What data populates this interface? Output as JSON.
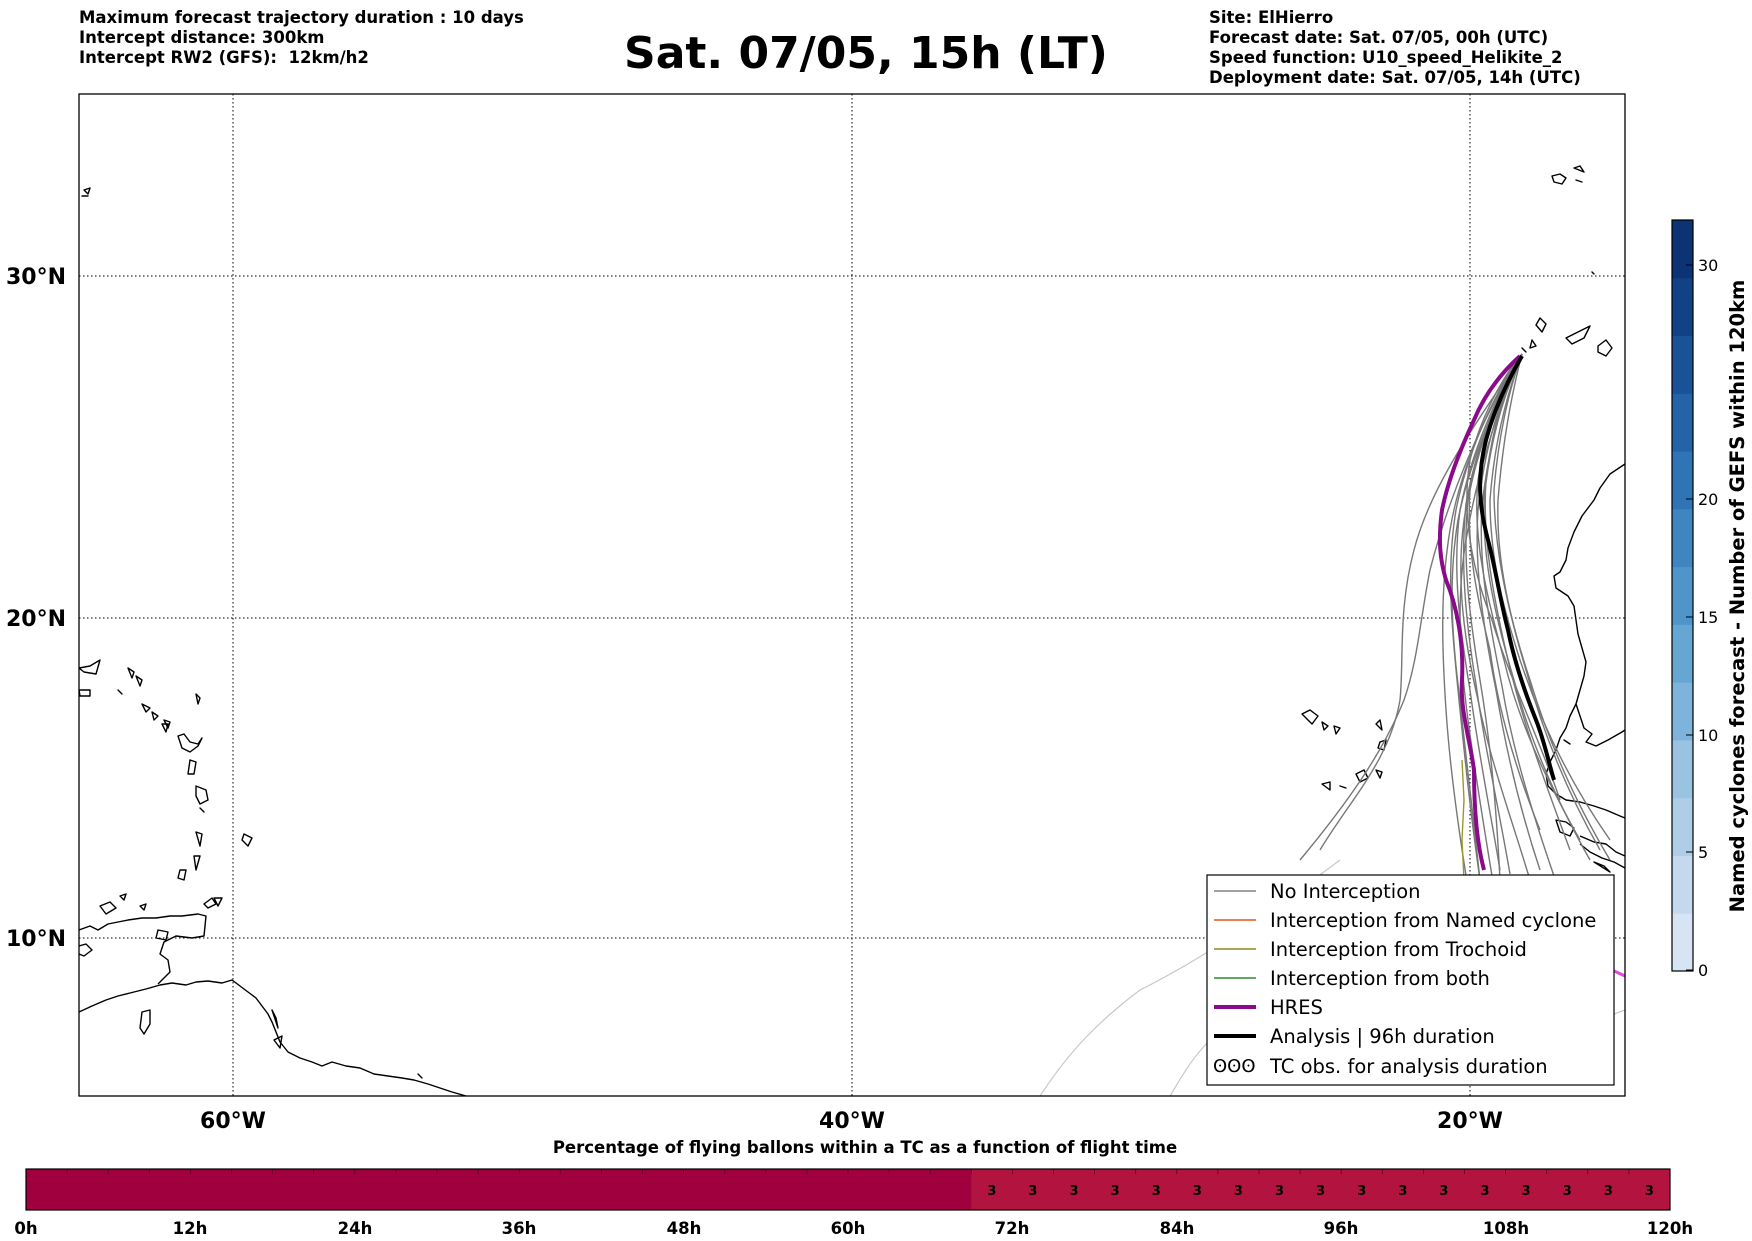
{
  "header": {
    "left_lines": [
      "Maximum forecast trajectory duration : 10 days",
      "Intercept distance: 300km",
      "Intercept RW2 (GFS):  12km/h2"
    ],
    "title": "Sat. 07/05, 15h (LT)",
    "right_lines": [
      "Site: ElHierro",
      "Forecast date: Sat. 07/05, 00h (UTC)",
      "Speed function: U10_speed_Helikite_2",
      "Deployment date: Sat. 07/05, 14h (UTC)"
    ]
  },
  "map": {
    "lat_labels": [
      "30°N",
      "20°N",
      "10°N"
    ],
    "lon_labels": [
      "60°W",
      "40°W",
      "20°W"
    ],
    "grid": "dotted"
  },
  "legend": {
    "items": [
      {
        "label": "No Interception",
        "color": "#808080",
        "style": "thin"
      },
      {
        "label": "Interception from Named cyclone",
        "color": "#e8531e",
        "style": "thin"
      },
      {
        "label": "Interception from Trochoid",
        "color": "#8b8b1a",
        "style": "thin"
      },
      {
        "label": "Interception from both",
        "color": "#2e8b2e",
        "style": "thin"
      },
      {
        "label": "HRES",
        "color": "#8b0a8b",
        "style": "thick"
      },
      {
        "label": "Analysis | 96h duration",
        "color": "#000000",
        "style": "thick"
      },
      {
        "label": "TC obs. for analysis duration",
        "color": "#000000",
        "style": "symbol",
        "symbol": "ʘʘʘ"
      }
    ]
  },
  "colorbar": {
    "label": "Named cyclones forecast - Number of GEFS within 120km",
    "ticks": [
      "0",
      "5",
      "10",
      "15",
      "20",
      "30"
    ],
    "colors": [
      "#d6e4f3",
      "#c4d9ee",
      "#aecde6",
      "#9ac3e1",
      "#7eb4db",
      "#66a6d2",
      "#4f95ca",
      "#3f86c0",
      "#2f74b5",
      "#2463a8",
      "#1a5298",
      "#124286",
      "#0c3474"
    ]
  },
  "timebar": {
    "title": "Percentage of flying ballons within a TC as a function of flight time",
    "ticks": [
      "0h",
      "12h",
      "24h",
      "36h",
      "48h",
      "60h",
      "72h",
      "84h",
      "96h",
      "108h",
      "120h"
    ],
    "cells": 40,
    "labeled_from_cell": 23,
    "cell_value": "3",
    "dark_color": "#a0003d",
    "light_color": "#b3143f"
  }
}
